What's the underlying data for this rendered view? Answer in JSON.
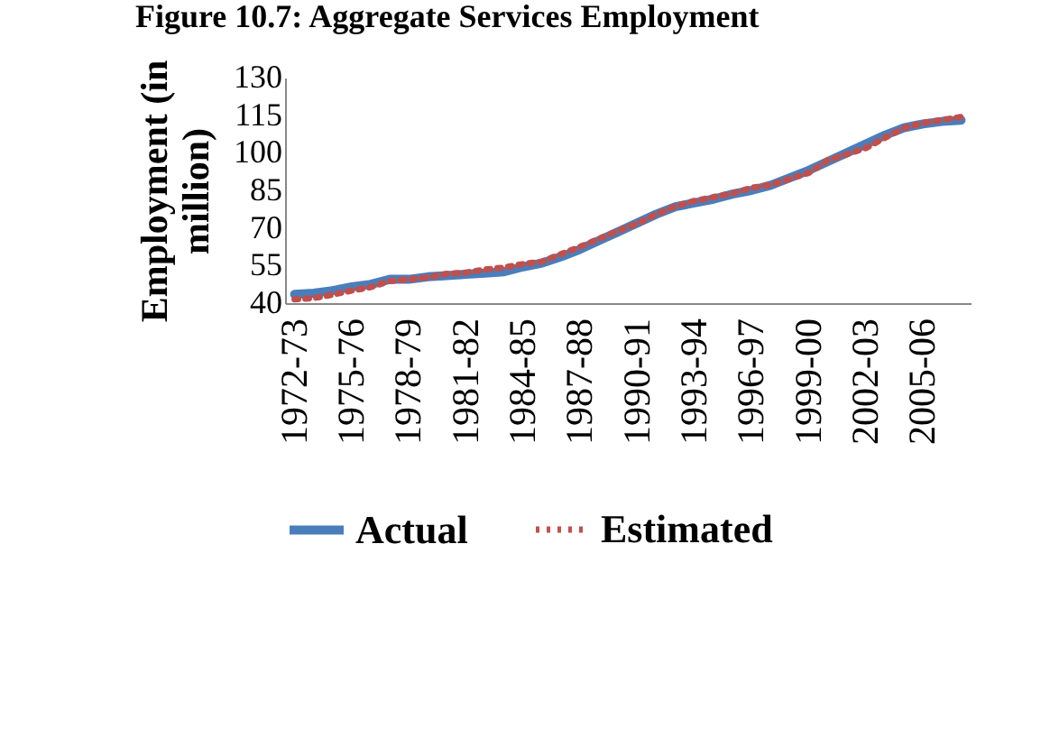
{
  "chart_data": {
    "type": "line",
    "title": "Figure 10.7: Aggregate Services Employment",
    "ylabel": "Employment (in million)",
    "categories": [
      "1972-73",
      null,
      null,
      "1975-76",
      null,
      null,
      "1978-79",
      null,
      null,
      "1981-82",
      null,
      null,
      "1984-85",
      null,
      null,
      "1987-88",
      null,
      null,
      "1990-91",
      null,
      null,
      "1993-94",
      null,
      null,
      "1996-97",
      null,
      null,
      "1999-00",
      null,
      null,
      "2002-03",
      null,
      null,
      "2005-06",
      null,
      null
    ],
    "series": [
      {
        "name": "Actual",
        "color": "#4a7ebb",
        "line_style": "solid",
        "values": [
          43.5,
          44,
          45,
          46.5,
          47.5,
          49.5,
          49.5,
          50.5,
          51,
          51.5,
          52,
          52.5,
          54.5,
          56,
          58.5,
          61.5,
          65,
          68.5,
          72,
          75.5,
          78.5,
          80,
          81.5,
          83.5,
          85,
          87,
          90,
          93,
          96.5,
          100,
          103.5,
          107,
          110,
          111.5,
          112.5,
          113
        ]
      },
      {
        "name": "Estimated",
        "color": "#c0504d",
        "line_style": "dotted",
        "values": [
          41.5,
          42,
          43.4,
          45,
          46.4,
          48.8,
          49.5,
          50.3,
          51.7,
          52.2,
          53.4,
          54.2,
          55.6,
          56.6,
          59.6,
          62.5,
          65.7,
          68.9,
          71.8,
          75.5,
          78.6,
          80.8,
          82.3,
          83.8,
          86,
          87.2,
          89.6,
          92,
          97,
          99.4,
          101.9,
          106,
          109.9,
          111.9,
          113.1,
          114.3
        ]
      }
    ],
    "ylim": [
      40,
      130
    ],
    "yticks": [
      40,
      55,
      70,
      85,
      100,
      115,
      130
    ],
    "grid": false,
    "legend": "bottom",
    "marker": "none"
  }
}
